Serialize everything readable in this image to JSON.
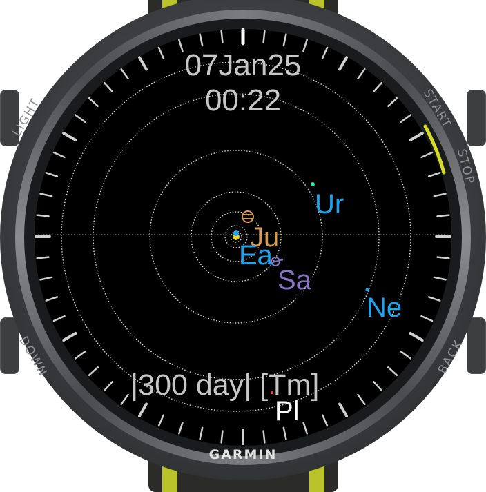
{
  "display": {
    "date": "07Jan25",
    "time": "00:22",
    "scale": "|300 day| [Tm]"
  },
  "planets": [
    {
      "label": "Ju",
      "color": "#d39b55"
    },
    {
      "label": "Ea",
      "color": "#1fa3ec"
    },
    {
      "label": "Sa",
      "color": "#8a72c4"
    },
    {
      "label": "Ur",
      "color": "#1fa3ec"
    },
    {
      "label": "Ne",
      "color": "#1fa3ec"
    },
    {
      "label": "Pl",
      "color": "#ffffff"
    }
  ],
  "bezel": {
    "light": "LIGHT",
    "start": "START",
    "stop": "STOP",
    "down": "DOWN",
    "back": "BACK",
    "brand": "GARMIN"
  },
  "colors": {
    "accent": "#d4dc2a",
    "strap_accent": "#b9c32a",
    "text": "#c7c7c7",
    "dial": "#000000"
  }
}
